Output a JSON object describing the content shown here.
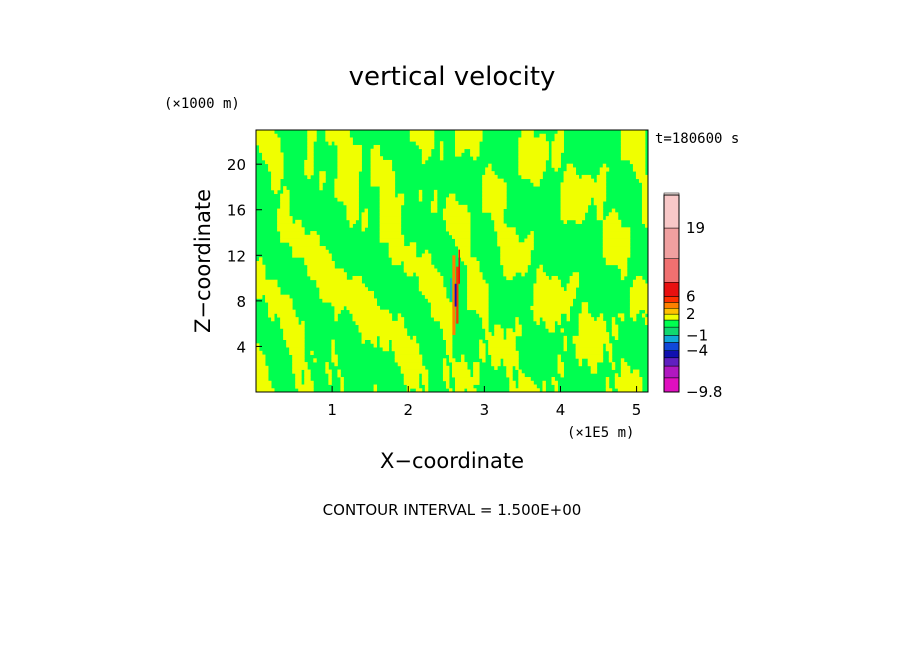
{
  "chart_data": {
    "type": "heatmap",
    "title": "vertical velocity",
    "xlabel": "X−coordinate",
    "ylabel": "Z−coordinate",
    "x_unit": "(×1E5 m)",
    "y_unit": "(×1000 m)",
    "xlim": [
      0,
      5.15
    ],
    "ylim": [
      0,
      23
    ],
    "x_ticks": [
      "1",
      "2",
      "3",
      "4",
      "5"
    ],
    "x_tick_values": [
      1,
      2,
      3,
      4,
      5
    ],
    "y_ticks": [
      "4",
      "8",
      "12",
      "16",
      "20"
    ],
    "y_tick_values": [
      4,
      8,
      12,
      16,
      20
    ],
    "time_label": "t=180600 s",
    "contour_interval": "CONTOUR INTERVAL = 1.500E+00",
    "colorbar": {
      "labels": [
        "19",
        "6",
        "2",
        "−1",
        "−4",
        "−9.8"
      ],
      "label_values": [
        19,
        6,
        2,
        -1,
        -4,
        -9.8
      ],
      "levels": [
        {
          "value": -9.8,
          "color": "#e010c0"
        },
        {
          "value": -8.3,
          "color": "#b018c0"
        },
        {
          "value": -6.8,
          "color": "#6020c0"
        },
        {
          "value": -5.3,
          "color": "#1010b0"
        },
        {
          "value": -4,
          "color": "#1048d8"
        },
        {
          "value": -2.5,
          "color": "#10a8d8"
        },
        {
          "value": -1,
          "color": "#10d870"
        },
        {
          "value": 0.5,
          "color": "#00ff50"
        },
        {
          "value": 1,
          "color": "#f0ff00"
        },
        {
          "value": 2,
          "color": "#ffc000"
        },
        {
          "value": 3.5,
          "color": "#ff8000"
        },
        {
          "value": 5,
          "color": "#ff3000"
        },
        {
          "value": 6,
          "color": "#e81010"
        },
        {
          "value": 10,
          "color": "#f07070"
        },
        {
          "value": 14,
          "color": "#f0a0a0"
        },
        {
          "value": 19,
          "color": "#f8c8c8"
        },
        {
          "value": 23,
          "color": "#fff0ec"
        }
      ]
    },
    "field_colors": {
      "neutral": "#00ff50",
      "positive": "#f0ff00"
    },
    "grid": false
  }
}
